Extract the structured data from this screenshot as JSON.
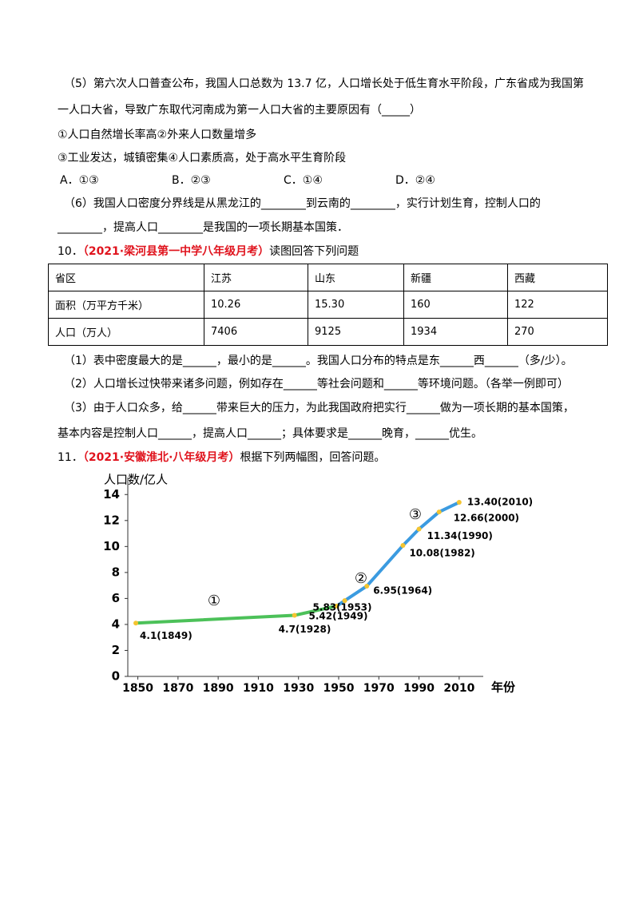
{
  "q9": {
    "lines": [
      "（5）第六次人口普查公布，我国人口总数为 13.7 亿，人口增长处于低生育水平阶段，广东省成为我国第",
      "一人口大省，导致广东取代河南成为第一人口大省的主要原因有（_____）",
      "①人口自然增长率高②外来人口数量增多",
      "③工业发达，城镇密集④人口素质高，处于高水平生育阶段"
    ],
    "options": [
      "A．①③",
      "B．②③",
      "C．①④",
      "D．②④"
    ],
    "lines2": [
      "（6）我国人口密度分界线是从黑龙江的________到云南的________，实行计划生育，控制人口的",
      "________，提高人口________是我国的一项长期基本国策．"
    ]
  },
  "q10": {
    "number": "10．",
    "source": "（2021·梁河县第一中学八年级月考）",
    "text": "读图回答下列问题",
    "table": {
      "header": [
        "省区",
        "江苏",
        "山东",
        "新疆",
        "西藏"
      ],
      "rows": [
        [
          "面积（万平方千米）",
          "10.26",
          "15.30",
          "160",
          "122"
        ],
        [
          "人口（万人）",
          "7406",
          "9125",
          "1934",
          "270"
        ]
      ]
    },
    "lines": [
      "（1）表中密度最大的是______，最小的是______。我国人口分布的特点是东______西______（多/少）。",
      "（2）人口增长过快带来诸多问题，例如存在______等社会问题和______等环境问题。（各举一例即可）",
      "（3）由于人口众多，给______带来巨大的压力，为此我国政府把实行______做为一项长期的基本国策，",
      "基本内容是控制人口______，提高人口______；具体要求是______晚育，______优生。"
    ]
  },
  "q11": {
    "number": "11．",
    "source": "（2021·安徽淮北·八年级月考）",
    "text": "根据下列两幅图，回答问题。"
  },
  "chart_data": {
    "type": "line",
    "y_label": "人口数/亿人",
    "x_label": "年份",
    "xlim": [
      1845,
      2020
    ],
    "xticks": [
      1850,
      1870,
      1890,
      1910,
      1930,
      1950,
      1970,
      1990,
      2010
    ],
    "ylim": [
      0,
      15
    ],
    "yticks": [
      0,
      2,
      4,
      6,
      8,
      10,
      12,
      14
    ],
    "annotations": [
      "①",
      "②",
      "③"
    ],
    "series": [
      {
        "color": "#4cc159",
        "x": [
          1849,
          1928
        ],
        "values": [
          4.1,
          4.7
        ],
        "value_labels": [
          "4.1(1849)",
          "4.7(1928)"
        ]
      },
      {
        "color": "#3b9be0",
        "x": [
          1949,
          1953,
          1964,
          1982,
          1990,
          2000,
          2010
        ],
        "values": [
          5.42,
          5.83,
          6.95,
          10.08,
          11.34,
          12.66,
          13.4
        ],
        "value_labels": [
          "5.42(1949)",
          "5.83(1953)",
          "6.95(1964)",
          "10.08(1982)",
          "11.34(1990)",
          "12.66(2000)",
          "13.40(2010)"
        ]
      }
    ]
  }
}
